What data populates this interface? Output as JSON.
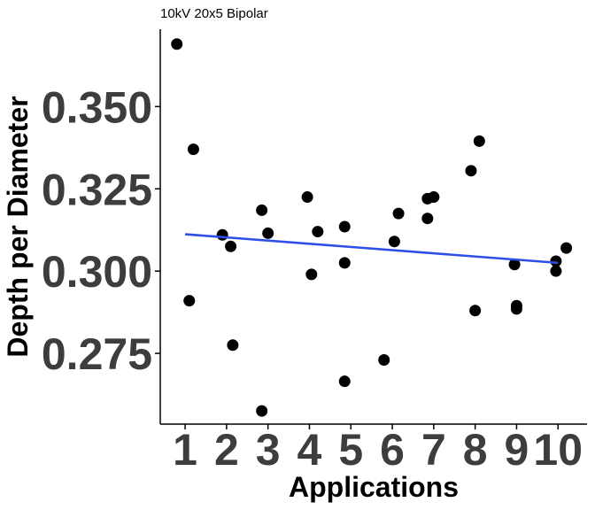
{
  "chart_data": {
    "type": "scatter",
    "title": "10kV 20x5 Bipolar",
    "xlabel": "Applications",
    "ylabel": "Depth per Diameter",
    "xlim": [
      0.4,
      10.7
    ],
    "ylim": [
      0.2535,
      0.3735
    ],
    "x_ticks": [
      1,
      2,
      3,
      4,
      5,
      6,
      7,
      8,
      9,
      10
    ],
    "x_tick_labels": [
      "1",
      "2",
      "3",
      "4",
      "5",
      "6",
      "7",
      "8",
      "9",
      "10"
    ],
    "y_ticks": [
      0.275,
      0.3,
      0.325,
      0.35
    ],
    "y_tick_labels": [
      "0.275",
      "0.300",
      "0.325",
      "0.350"
    ],
    "grid": false,
    "points": [
      {
        "x": 0.8,
        "y": 0.369
      },
      {
        "x": 1.1,
        "y": 0.291
      },
      {
        "x": 1.2,
        "y": 0.337
      },
      {
        "x": 1.9,
        "y": 0.311
      },
      {
        "x": 2.1,
        "y": 0.3075
      },
      {
        "x": 2.15,
        "y": 0.2775
      },
      {
        "x": 2.85,
        "y": 0.3185
      },
      {
        "x": 2.85,
        "y": 0.2575
      },
      {
        "x": 3.0,
        "y": 0.3115
      },
      {
        "x": 3.95,
        "y": 0.3225
      },
      {
        "x": 4.05,
        "y": 0.299
      },
      {
        "x": 4.2,
        "y": 0.312
      },
      {
        "x": 4.85,
        "y": 0.3135
      },
      {
        "x": 4.85,
        "y": 0.3025
      },
      {
        "x": 4.85,
        "y": 0.2665
      },
      {
        "x": 5.8,
        "y": 0.273
      },
      {
        "x": 6.05,
        "y": 0.309
      },
      {
        "x": 6.15,
        "y": 0.3175
      },
      {
        "x": 6.85,
        "y": 0.322
      },
      {
        "x": 6.85,
        "y": 0.316
      },
      {
        "x": 7.0,
        "y": 0.3225
      },
      {
        "x": 7.9,
        "y": 0.3305
      },
      {
        "x": 8.0,
        "y": 0.288
      },
      {
        "x": 8.1,
        "y": 0.3395
      },
      {
        "x": 8.95,
        "y": 0.302
      },
      {
        "x": 9.0,
        "y": 0.2895
      },
      {
        "x": 9.0,
        "y": 0.2885
      },
      {
        "x": 9.95,
        "y": 0.303
      },
      {
        "x": 9.95,
        "y": 0.3
      },
      {
        "x": 10.2,
        "y": 0.307
      }
    ],
    "trendline": {
      "type": "linear",
      "color": "#2e4ee8",
      "x": [
        1,
        10
      ],
      "y": [
        0.3112,
        0.3025
      ]
    },
    "point_color": "#000000"
  }
}
